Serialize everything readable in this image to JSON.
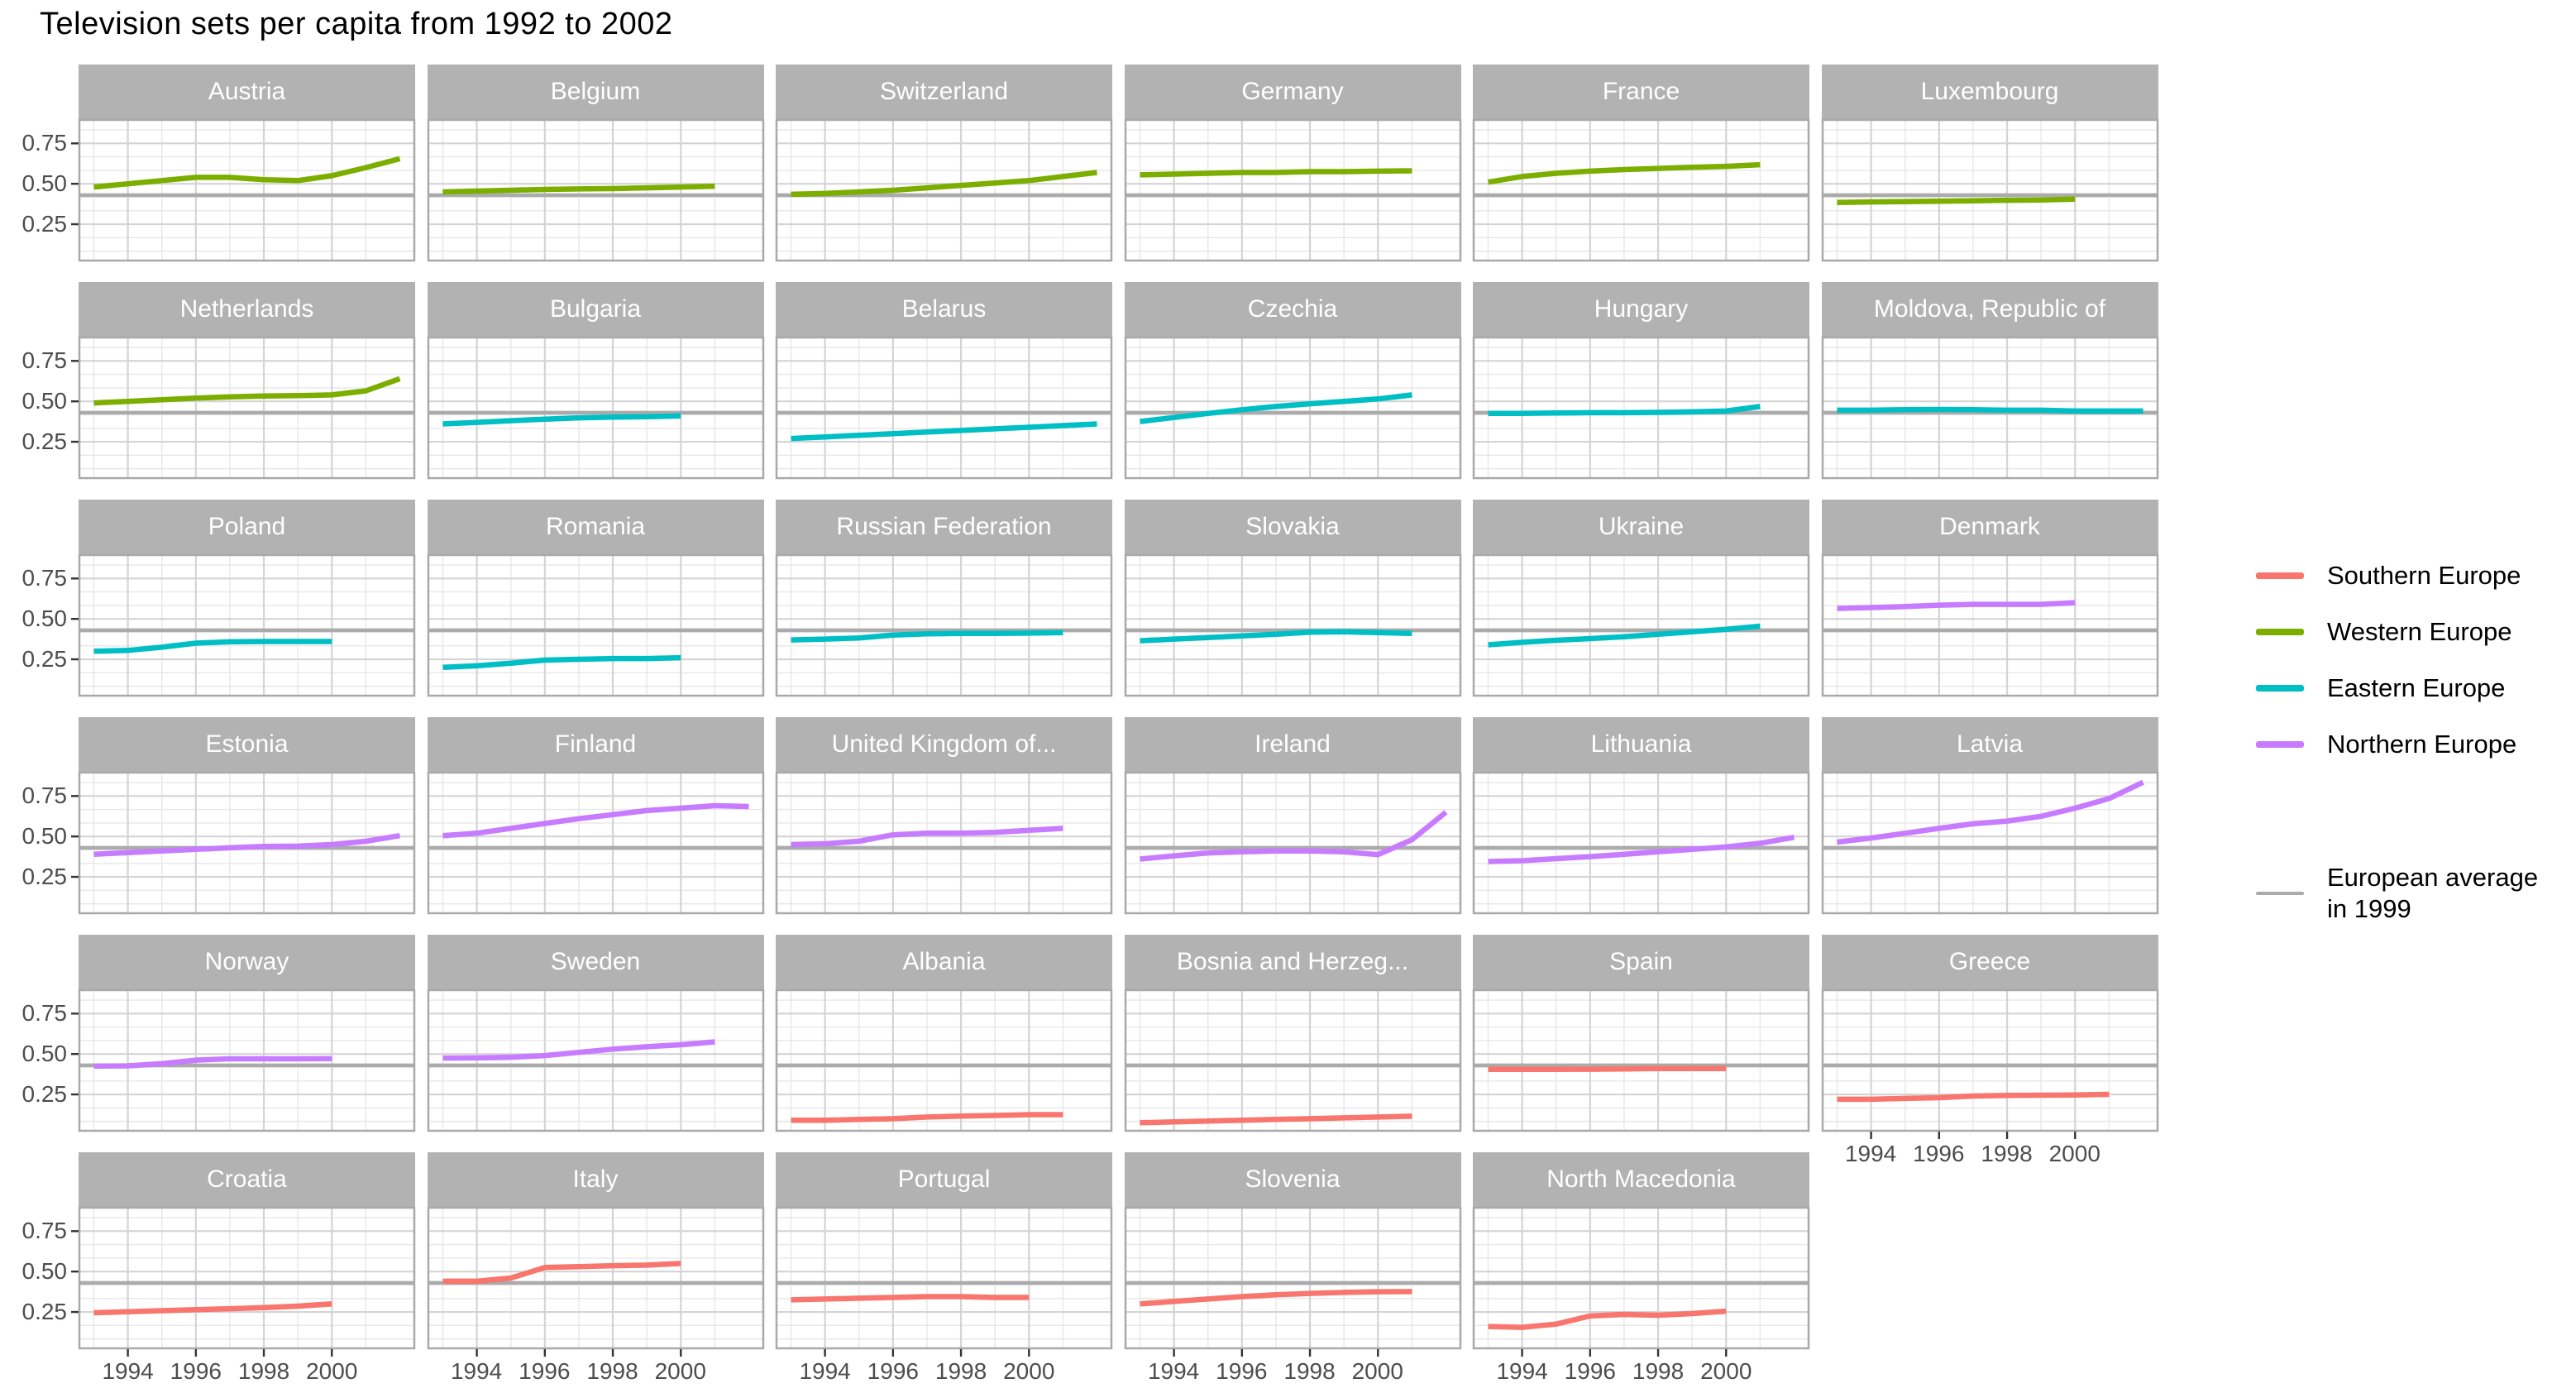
{
  "chart_data": {
    "type": "line",
    "title": "Television sets per capita from 1992 to 2002",
    "xlabel": "",
    "ylabel": "",
    "x_ticks": [
      1994,
      1996,
      1998,
      2000
    ],
    "x_tick_labels": [
      "1994",
      "1996",
      "1998",
      "2000"
    ],
    "y_ticks": [
      0.75,
      0.5,
      0.25
    ],
    "y_tick_labels": [
      "0.75",
      "0.50",
      "0.25"
    ],
    "x_domain": [
      1993,
      2002
    ],
    "y_domain": [
      0.02,
      0.9
    ],
    "grid": true,
    "legend_position": "right",
    "facet_columns": 6,
    "reference_line": {
      "value": 0.43,
      "color": "#ababab",
      "label": "European average\n in 1999"
    },
    "regions": [
      {
        "name": "Southern Europe",
        "color": "#F8766D"
      },
      {
        "name": "Western Europe",
        "color": "#7CAE00"
      },
      {
        "name": "Eastern Europe",
        "color": "#00BFC4"
      },
      {
        "name": "Northern Europe",
        "color": "#C77CFF"
      }
    ],
    "panels": [
      {
        "name": "Austria",
        "region": "Western Europe",
        "start_year": 1993,
        "values": [
          0.48,
          0.5,
          0.52,
          0.54,
          0.54,
          0.525,
          0.52,
          0.55,
          0.6,
          0.655
        ]
      },
      {
        "name": "Belgium",
        "region": "Western Europe",
        "start_year": 1993,
        "values": [
          0.45,
          0.455,
          0.46,
          0.465,
          0.468,
          0.47,
          0.475,
          0.48,
          0.485
        ]
      },
      {
        "name": "Switzerland",
        "region": "Western Europe",
        "start_year": 1993,
        "values": [
          0.435,
          0.44,
          0.45,
          0.46,
          0.475,
          0.49,
          0.505,
          0.52,
          0.545,
          0.57
        ]
      },
      {
        "name": "Germany",
        "region": "Western Europe",
        "start_year": 1993,
        "values": [
          0.555,
          0.56,
          0.565,
          0.57,
          0.57,
          0.575,
          0.575,
          0.578,
          0.58
        ]
      },
      {
        "name": "France",
        "region": "Western Europe",
        "start_year": 1993,
        "values": [
          0.51,
          0.545,
          0.565,
          0.578,
          0.588,
          0.595,
          0.602,
          0.608,
          0.618
        ]
      },
      {
        "name": "Luxembourg",
        "region": "Western Europe",
        "start_year": 1993,
        "values": [
          0.385,
          0.388,
          0.39,
          0.392,
          0.395,
          0.398,
          0.4,
          0.405
        ]
      },
      {
        "name": "Netherlands",
        "region": "Western Europe",
        "start_year": 1993,
        "values": [
          0.49,
          0.5,
          0.51,
          0.52,
          0.528,
          0.533,
          0.535,
          0.54,
          0.565,
          0.64
        ]
      },
      {
        "name": "Bulgaria",
        "region": "Eastern Europe",
        "start_year": 1993,
        "values": [
          0.36,
          0.37,
          0.38,
          0.39,
          0.398,
          0.402,
          0.405,
          0.41
        ]
      },
      {
        "name": "Belarus",
        "region": "Eastern Europe",
        "start_year": 1993,
        "values": [
          0.27,
          0.28,
          0.29,
          0.3,
          0.31,
          0.32,
          0.33,
          0.34,
          0.35,
          0.36
        ]
      },
      {
        "name": "Czechia",
        "region": "Eastern Europe",
        "start_year": 1993,
        "values": [
          0.375,
          0.4,
          0.425,
          0.448,
          0.468,
          0.485,
          0.5,
          0.515,
          0.54
        ]
      },
      {
        "name": "Hungary",
        "region": "Eastern Europe",
        "start_year": 1993,
        "values": [
          0.425,
          0.425,
          0.428,
          0.43,
          0.43,
          0.432,
          0.435,
          0.44,
          0.468
        ]
      },
      {
        "name": "Moldova, Republic of",
        "region": "Eastern Europe",
        "start_year": 1993,
        "values": [
          0.445,
          0.445,
          0.448,
          0.45,
          0.448,
          0.445,
          0.445,
          0.44,
          0.44,
          0.44
        ]
      },
      {
        "name": "Poland",
        "region": "Eastern Europe",
        "start_year": 1993,
        "values": [
          0.3,
          0.305,
          0.325,
          0.35,
          0.358,
          0.36,
          0.36,
          0.36
        ]
      },
      {
        "name": "Romania",
        "region": "Eastern Europe",
        "start_year": 1993,
        "values": [
          0.2,
          0.21,
          0.226,
          0.245,
          0.25,
          0.255,
          0.255,
          0.26
        ]
      },
      {
        "name": "Russian Federation",
        "region": "Eastern Europe",
        "start_year": 1993,
        "values": [
          0.37,
          0.375,
          0.382,
          0.4,
          0.408,
          0.41,
          0.41,
          0.412,
          0.415
        ]
      },
      {
        "name": "Slovakia",
        "region": "Eastern Europe",
        "start_year": 1993,
        "values": [
          0.365,
          0.375,
          0.385,
          0.395,
          0.405,
          0.418,
          0.42,
          0.415,
          0.41
        ]
      },
      {
        "name": "Ukraine",
        "region": "Eastern Europe",
        "start_year": 1993,
        "values": [
          0.34,
          0.355,
          0.368,
          0.378,
          0.39,
          0.405,
          0.42,
          0.436,
          0.455
        ]
      },
      {
        "name": "Denmark",
        "region": "Northern Europe",
        "start_year": 1993,
        "values": [
          0.565,
          0.57,
          0.576,
          0.585,
          0.59,
          0.59,
          0.59,
          0.6
        ]
      },
      {
        "name": "Estonia",
        "region": "Northern Europe",
        "start_year": 1993,
        "values": [
          0.39,
          0.4,
          0.41,
          0.42,
          0.43,
          0.438,
          0.44,
          0.45,
          0.47,
          0.505
        ]
      },
      {
        "name": "Finland",
        "region": "Northern Europe",
        "start_year": 1993,
        "values": [
          0.505,
          0.52,
          0.55,
          0.58,
          0.61,
          0.635,
          0.66,
          0.675,
          0.69,
          0.685
        ]
      },
      {
        "name": "United Kingdom of...",
        "region": "Northern Europe",
        "start_year": 1993,
        "values": [
          0.45,
          0.455,
          0.47,
          0.51,
          0.52,
          0.52,
          0.525,
          0.538,
          0.55
        ]
      },
      {
        "name": "Ireland",
        "region": "Northern Europe",
        "start_year": 1993,
        "values": [
          0.36,
          0.38,
          0.398,
          0.405,
          0.41,
          0.41,
          0.405,
          0.388,
          0.48,
          0.65
        ]
      },
      {
        "name": "Lithuania",
        "region": "Northern Europe",
        "start_year": 1993,
        "values": [
          0.345,
          0.35,
          0.363,
          0.375,
          0.39,
          0.405,
          0.42,
          0.435,
          0.458,
          0.495
        ]
      },
      {
        "name": "Latvia",
        "region": "Northern Europe",
        "start_year": 1993,
        "values": [
          0.465,
          0.49,
          0.52,
          0.55,
          0.578,
          0.595,
          0.625,
          0.675,
          0.735,
          0.835
        ]
      },
      {
        "name": "Norway",
        "region": "Northern Europe",
        "start_year": 1993,
        "values": [
          0.425,
          0.427,
          0.44,
          0.462,
          0.47,
          0.47,
          0.47,
          0.472
        ]
      },
      {
        "name": "Sweden",
        "region": "Northern Europe",
        "start_year": 1993,
        "values": [
          0.475,
          0.476,
          0.48,
          0.49,
          0.51,
          0.53,
          0.545,
          0.557,
          0.575
        ]
      },
      {
        "name": "Albania",
        "region": "Southern Europe",
        "start_year": 1993,
        "values": [
          0.09,
          0.09,
          0.095,
          0.1,
          0.11,
          0.116,
          0.12,
          0.125,
          0.125
        ]
      },
      {
        "name": "Bosnia and Herzeg...",
        "region": "Southern Europe",
        "start_year": 1993,
        "values": [
          0.075,
          0.08,
          0.085,
          0.09,
          0.095,
          0.1,
          0.105,
          0.11,
          0.115
        ]
      },
      {
        "name": "Spain",
        "region": "Southern Europe",
        "start_year": 1993,
        "values": [
          0.405,
          0.405,
          0.405,
          0.406,
          0.408,
          0.41,
          0.41,
          0.41
        ]
      },
      {
        "name": "Greece",
        "region": "Southern Europe",
        "start_year": 1993,
        "values": [
          0.22,
          0.22,
          0.225,
          0.23,
          0.24,
          0.244,
          0.245,
          0.246,
          0.25
        ]
      },
      {
        "name": "Croatia",
        "region": "Southern Europe",
        "start_year": 1993,
        "values": [
          0.245,
          0.252,
          0.258,
          0.264,
          0.27,
          0.277,
          0.286,
          0.3
        ]
      },
      {
        "name": "Italy",
        "region": "Southern Europe",
        "start_year": 1993,
        "values": [
          0.44,
          0.44,
          0.46,
          0.525,
          0.53,
          0.536,
          0.54,
          0.55
        ]
      },
      {
        "name": "Portugal",
        "region": "Southern Europe",
        "start_year": 1993,
        "values": [
          0.325,
          0.33,
          0.335,
          0.34,
          0.345,
          0.345,
          0.34,
          0.34
        ]
      },
      {
        "name": "Slovenia",
        "region": "Southern Europe",
        "start_year": 1993,
        "values": [
          0.3,
          0.315,
          0.33,
          0.345,
          0.356,
          0.365,
          0.371,
          0.375,
          0.376
        ]
      },
      {
        "name": "North Macedonia",
        "region": "Southern Europe",
        "start_year": 1993,
        "values": [
          0.16,
          0.155,
          0.175,
          0.225,
          0.235,
          0.23,
          0.24,
          0.255
        ]
      }
    ]
  }
}
